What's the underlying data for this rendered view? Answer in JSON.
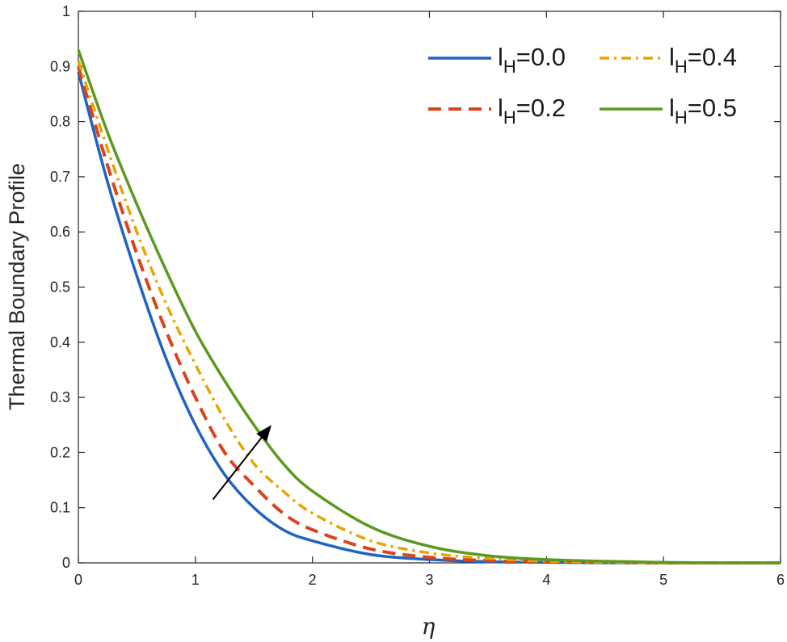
{
  "chart_data": {
    "type": "line",
    "title": "",
    "xlabel": "η",
    "ylabel": "Thermal Boundary Profile",
    "xlim": [
      0,
      6
    ],
    "ylim": [
      0,
      1
    ],
    "x_ticks": [
      "0",
      "1",
      "2",
      "3",
      "4",
      "5",
      "6"
    ],
    "y_ticks": [
      "0",
      "0.1",
      "0.2",
      "0.3",
      "0.4",
      "0.5",
      "0.6",
      "0.7",
      "0.8",
      "0.9",
      "1"
    ],
    "grid": false,
    "legend_position": "top-right",
    "x": [
      0,
      0.25,
      0.5,
      0.75,
      1.0,
      1.25,
      1.5,
      1.75,
      2.0,
      2.5,
      3.0,
      3.5,
      4.0,
      4.5,
      5.0,
      5.5,
      6.0
    ],
    "series": [
      {
        "legend_base": "l",
        "legend_sub": "H",
        "legend_value": "=0.0",
        "color": "#1f63c4",
        "dash": "solid",
        "values": [
          0.89,
          0.69,
          0.52,
          0.37,
          0.25,
          0.16,
          0.1,
          0.06,
          0.04,
          0.015,
          0.006,
          0.002,
          0.001,
          0.0,
          0.0,
          0.0,
          0.0
        ]
      },
      {
        "legend_base": "l",
        "legend_sub": "H",
        "legend_value": "=0.2",
        "color": "#d9441c",
        "dash": "dash",
        "values": [
          0.9,
          0.72,
          0.56,
          0.42,
          0.3,
          0.2,
          0.14,
          0.09,
          0.06,
          0.025,
          0.01,
          0.004,
          0.002,
          0.001,
          0.0,
          0.0,
          0.0
        ]
      },
      {
        "legend_base": "l",
        "legend_sub": "H",
        "legend_value": "=0.4",
        "color": "#e8a400",
        "dash": "dashdot",
        "values": [
          0.91,
          0.75,
          0.6,
          0.47,
          0.36,
          0.26,
          0.18,
          0.13,
          0.09,
          0.04,
          0.018,
          0.008,
          0.003,
          0.001,
          0.0,
          0.0,
          0.0
        ]
      },
      {
        "legend_base": "l",
        "legend_sub": "H",
        "legend_value": "=0.5",
        "color": "#5b9a1f",
        "dash": "solid",
        "values": [
          0.93,
          0.78,
          0.65,
          0.53,
          0.42,
          0.33,
          0.25,
          0.18,
          0.13,
          0.065,
          0.03,
          0.013,
          0.006,
          0.003,
          0.001,
          0.0,
          0.0
        ]
      }
    ],
    "annotation": {
      "type": "arrow",
      "from": [
        1.15,
        0.115
      ],
      "to": [
        1.65,
        0.25
      ],
      "color": "#000000"
    }
  }
}
